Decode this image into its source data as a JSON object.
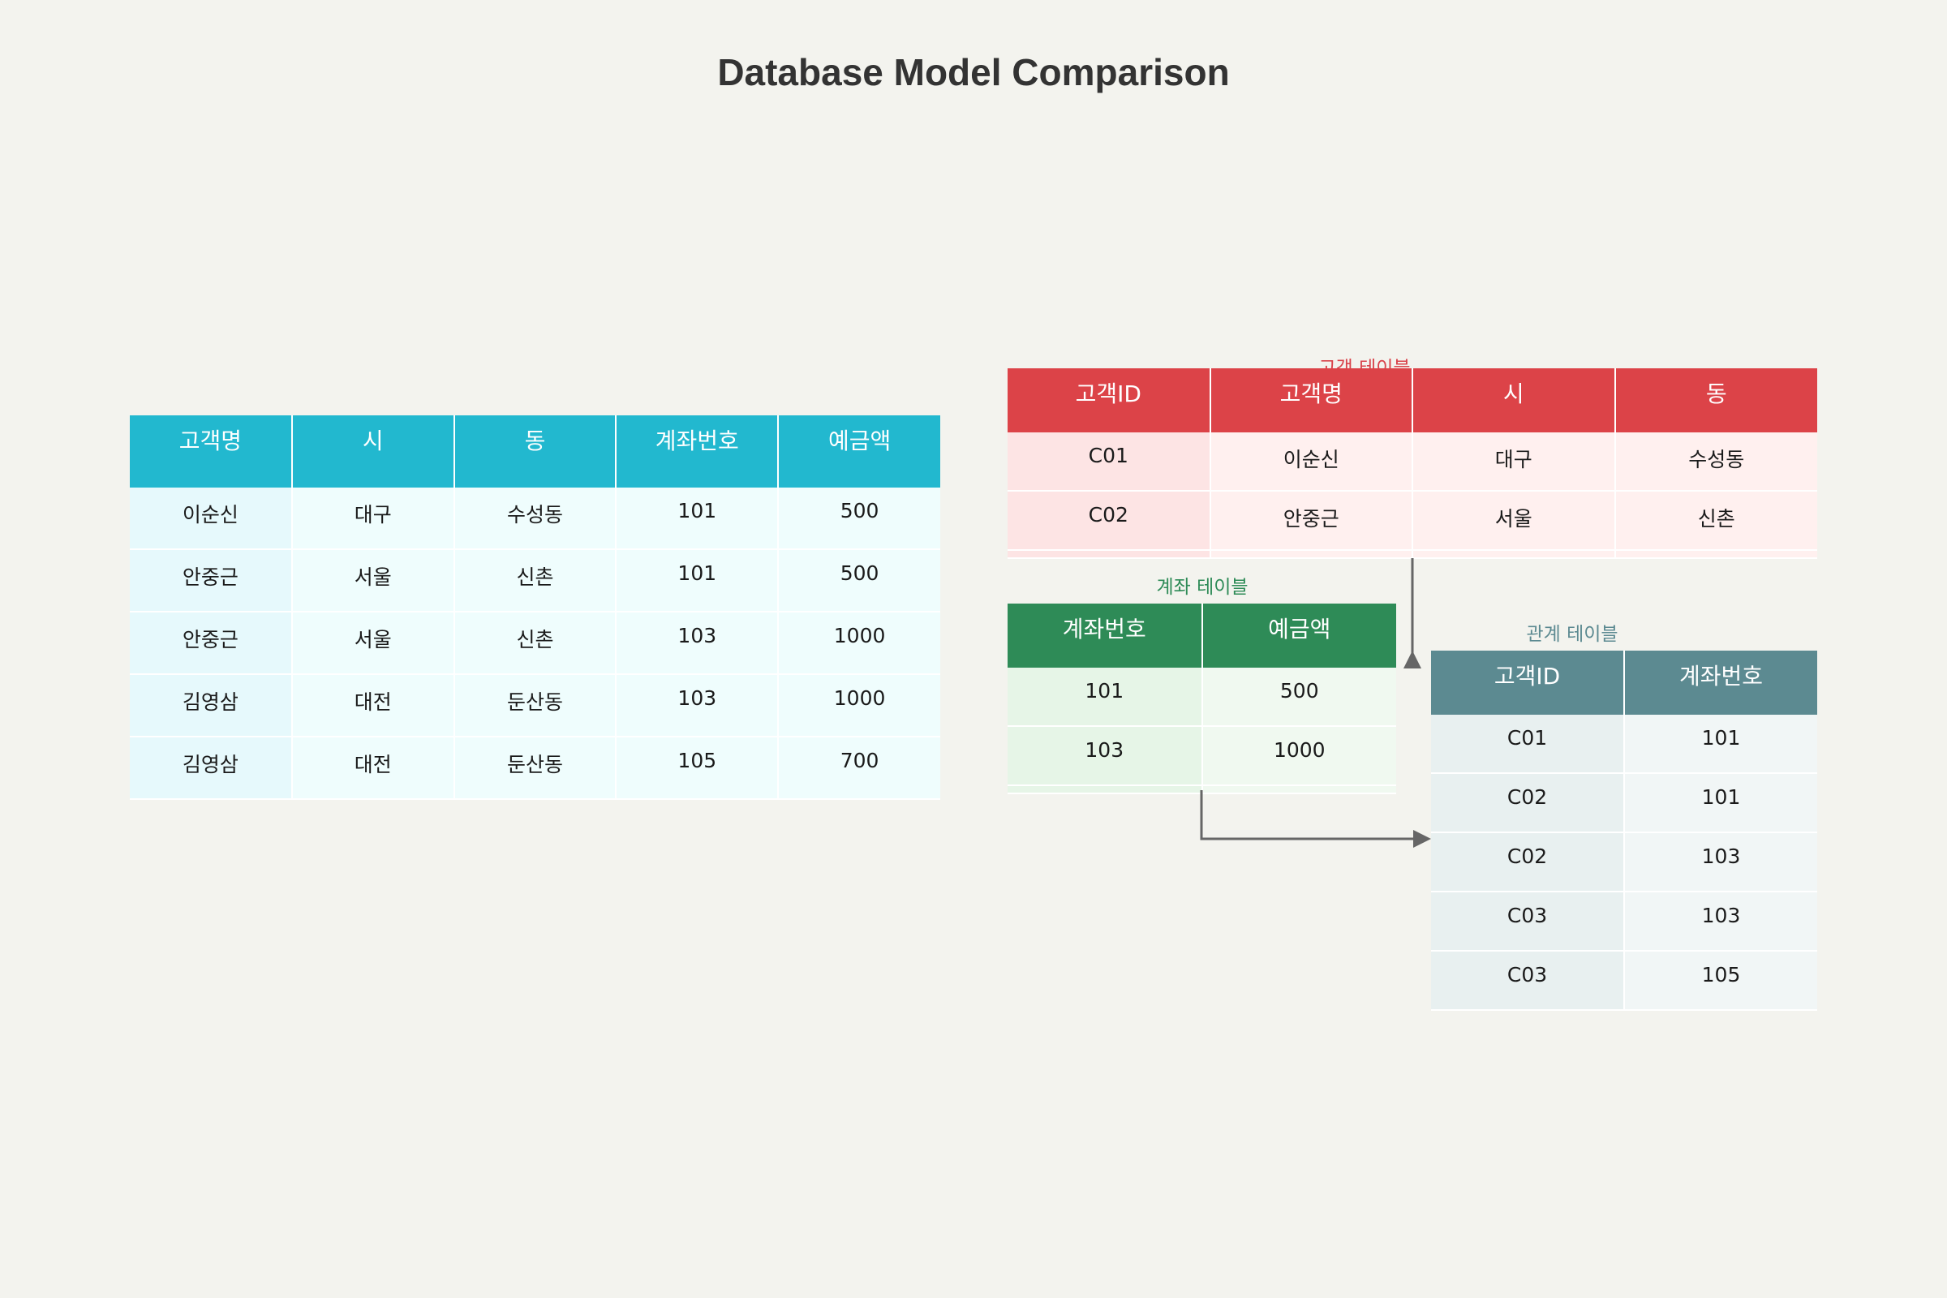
{
  "title": "Database Model Comparison",
  "flat_table": {
    "headers": [
      "고객명",
      "시",
      "동",
      "계좌번호",
      "예금액"
    ],
    "rows": [
      [
        "이순신",
        "대구",
        "수성동",
        "101",
        "500"
      ],
      [
        "안중근",
        "서울",
        "신촌",
        "101",
        "500"
      ],
      [
        "안중근",
        "서울",
        "신촌",
        "103",
        "1000"
      ],
      [
        "김영삼",
        "대전",
        "둔산동",
        "103",
        "1000"
      ],
      [
        "김영삼",
        "대전",
        "둔산동",
        "105",
        "700"
      ]
    ]
  },
  "customer_table": {
    "caption": "고객 테이블",
    "headers": [
      "고객ID",
      "고객명",
      "시",
      "동"
    ],
    "rows": [
      [
        "C01",
        "이순신",
        "대구",
        "수성동"
      ],
      [
        "C02",
        "안중근",
        "서울",
        "신촌"
      ]
    ]
  },
  "account_table": {
    "caption": "계좌 테이블",
    "headers": [
      "계좌번호",
      "예금액"
    ],
    "rows": [
      [
        "101",
        "500"
      ],
      [
        "103",
        "1000"
      ]
    ]
  },
  "relation_table": {
    "caption": "관계 테이블",
    "headers": [
      "고객ID",
      "계좌번호"
    ],
    "rows": [
      [
        "C01",
        "101"
      ],
      [
        "C02",
        "101"
      ],
      [
        "C02",
        "103"
      ],
      [
        "C03",
        "103"
      ],
      [
        "C03",
        "105"
      ]
    ]
  },
  "colors": {
    "flat_header": "#22b8cf",
    "customer_header": "#dc4348",
    "account_header": "#2e8b57",
    "relation_header": "#5c8a91",
    "arrow": "#666666"
  }
}
